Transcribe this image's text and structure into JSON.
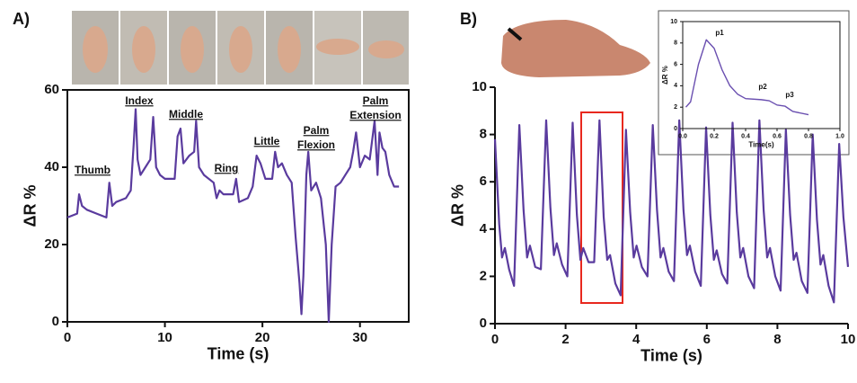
{
  "chart_data": [
    {
      "type": "line",
      "panel_label": "A)",
      "xlabel": "Time (s)",
      "ylabel": "ΔR %",
      "xlim": [
        0,
        35
      ],
      "ylim": [
        0,
        60
      ],
      "xticks": [
        0,
        10,
        20,
        30
      ],
      "yticks": [
        0,
        20,
        40,
        60
      ],
      "frame": true,
      "annotations": [
        [
          "Thumb"
        ],
        [
          "Index"
        ],
        [
          "Middle"
        ],
        [
          "Ring"
        ],
        [
          "Little"
        ],
        [
          "Palm",
          "Flexion"
        ],
        [
          "Palm",
          "Extension"
        ]
      ],
      "series": [
        {
          "color": "#5a3b9e",
          "x": [
            0,
            1,
            1.2,
            1.5,
            2,
            3,
            4,
            4.3,
            4.6,
            5,
            6,
            6.5,
            6.8,
            7,
            7.2,
            7.5,
            8,
            8.5,
            8.8,
            9.1,
            9.5,
            10,
            11,
            11.3,
            11.6,
            11.9,
            12.5,
            13,
            13.2,
            13.5,
            14,
            15,
            15.3,
            15.6,
            16,
            17,
            17.3,
            17.6,
            18.5,
            19,
            19.4,
            19.8,
            20.3,
            21,
            21.3,
            21.6,
            22,
            22.5,
            23,
            23.4,
            23.8,
            24,
            24.2,
            24.5,
            24.7,
            25,
            25.5,
            26,
            26.5,
            26.8,
            27.1,
            27.5,
            28,
            28.5,
            29,
            29.3,
            29.6,
            30,
            30.5,
            31,
            31.5,
            31.8,
            32,
            32.3,
            32.6,
            33,
            33.5,
            34
          ],
          "values": [
            27,
            28,
            33,
            30,
            29,
            28,
            27,
            36,
            30,
            31,
            32,
            34,
            46,
            55,
            42,
            38,
            40,
            42,
            53,
            40,
            38,
            37,
            37,
            48,
            50,
            41,
            43,
            44,
            52,
            40,
            38,
            36,
            32,
            34,
            33,
            33,
            37,
            31,
            32,
            35,
            43,
            41,
            37,
            37,
            44,
            40,
            41,
            38,
            36,
            22,
            10,
            2,
            12,
            38,
            44,
            34,
            36,
            32,
            20,
            0,
            20,
            35,
            36,
            38,
            40,
            44,
            49,
            40,
            43,
            42,
            52,
            38,
            49,
            45,
            44,
            38,
            35,
            35
          ]
        }
      ]
    },
    {
      "type": "line",
      "panel_label": "B)",
      "xlabel": "Time (s)",
      "ylabel": "ΔR %",
      "xlim": [
        0,
        10
      ],
      "ylim": [
        0,
        10
      ],
      "xticks": [
        0,
        2,
        4,
        6,
        8,
        10
      ],
      "yticks": [
        0,
        2,
        4,
        6,
        8,
        10
      ],
      "frame": false,
      "series": [
        {
          "color": "#5a3b9e",
          "x": [
            0,
            0.12,
            0.2,
            0.28,
            0.4,
            0.54,
            0.69,
            0.81,
            0.91,
            0.99,
            1.14,
            1.3,
            1.45,
            1.57,
            1.67,
            1.75,
            1.9,
            2.05,
            2.2,
            2.32,
            2.42,
            2.5,
            2.65,
            2.81,
            2.96,
            3.08,
            3.18,
            3.26,
            3.41,
            3.56,
            3.71,
            3.83,
            3.93,
            4.01,
            4.16,
            4.32,
            4.47,
            4.59,
            4.69,
            4.77,
            4.92,
            5.07,
            5.22,
            5.34,
            5.44,
            5.52,
            5.67,
            5.83,
            5.98,
            6.1,
            6.2,
            6.28,
            6.43,
            6.58,
            6.73,
            6.85,
            6.95,
            7.03,
            7.18,
            7.34,
            7.49,
            7.61,
            7.71,
            7.79,
            7.94,
            8.09,
            8.24,
            8.36,
            8.46,
            8.54,
            8.69,
            8.85,
            9,
            9.12,
            9.22,
            9.3,
            9.45,
            9.6,
            9.75,
            9.87,
            10
          ],
          "values": [
            7.8,
            4.2,
            2.8,
            3.2,
            2.3,
            1.6,
            8.4,
            4.8,
            2.8,
            3.3,
            2.4,
            2.3,
            8.6,
            4.9,
            2.9,
            3.4,
            2.5,
            2.0,
            8.5,
            4.6,
            2.7,
            3.2,
            2.6,
            2.6,
            8.6,
            4.5,
            2.7,
            2.9,
            1.7,
            1.2,
            8.2,
            4.7,
            2.8,
            3.3,
            2.4,
            2.0,
            8.4,
            4.8,
            2.8,
            3.2,
            2.2,
            1.8,
            8.6,
            4.8,
            2.9,
            3.3,
            2.2,
            1.6,
            8.3,
            4.6,
            2.7,
            3.1,
            2.1,
            1.7,
            8.5,
            4.7,
            2.8,
            3.2,
            2.0,
            1.5,
            8.6,
            4.8,
            2.8,
            3.2,
            2.0,
            1.4,
            8.2,
            4.6,
            2.7,
            3.0,
            1.8,
            1.3,
            8.0,
            4.4,
            2.5,
            2.9,
            1.6,
            0.9,
            7.6,
            4.5,
            2.4
          ]
        }
      ]
    },
    {
      "type": "line",
      "xlabel": "Time(s)",
      "ylabel": "ΔR %",
      "xlim": [
        0,
        1
      ],
      "ylim": [
        0,
        10
      ],
      "xticks": [
        {
          "value": 0,
          "label": "0.0"
        },
        0.2,
        0.4,
        0.6,
        0.8,
        {
          "value": 1,
          "label": "1.0"
        }
      ],
      "yticks": [
        0,
        2,
        4,
        6,
        8,
        10
      ],
      "frame": true,
      "annotations": [
        [
          "p1"
        ],
        [
          "p2"
        ],
        [
          "p3"
        ]
      ],
      "series": [
        {
          "color": "#6a4fb0",
          "x": [
            0.02,
            0.05,
            0.1,
            0.15,
            0.2,
            0.25,
            0.3,
            0.35,
            0.4,
            0.5,
            0.55,
            0.6,
            0.65,
            0.7,
            0.8
          ],
          "values": [
            2,
            2.5,
            6,
            8.3,
            7.5,
            5.5,
            4,
            3.2,
            2.8,
            2.7,
            2.6,
            2.2,
            2.1,
            1.6,
            1.3
          ]
        }
      ]
    }
  ]
}
